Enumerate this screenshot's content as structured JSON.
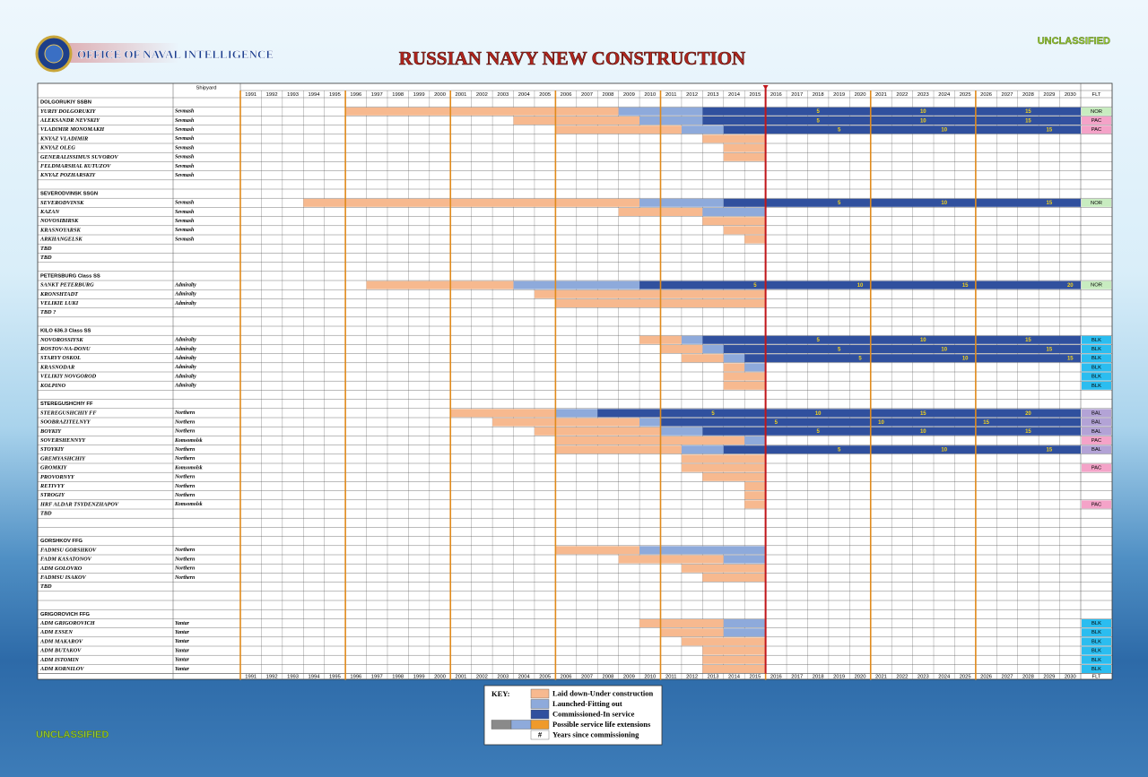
{
  "header": {
    "agency": "OFFICE OF NAVAL INTELLIGENCE",
    "title": "RUSSIAN NAVY NEW CONSTRUCTION",
    "classification": "UNCLASSIFIED"
  },
  "table": {
    "shipyard_header": "Shipyard",
    "fleet_header": "FLT",
    "current_year": 2015,
    "years": [
      1991,
      1992,
      1993,
      1994,
      1995,
      1996,
      1997,
      1998,
      1999,
      2000,
      2001,
      2002,
      2003,
      2004,
      2005,
      2006,
      2007,
      2008,
      2009,
      2010,
      2011,
      2012,
      2013,
      2014,
      2015,
      2016,
      2017,
      2018,
      2019,
      2020,
      2021,
      2022,
      2023,
      2024,
      2025,
      2026,
      2027,
      2028,
      2029,
      2030
    ],
    "colors": {
      "laid": "#f7b98f",
      "launched": "#8eaadb",
      "commissioned": "#30509e",
      "extension": "#ef9a2b",
      "gray": "#8a8a8a"
    },
    "fleet_colors": {
      "NOR": "#c8ecc0",
      "PAC": "#f4a3c8",
      "BLK": "#2bbdf0",
      "BAL": "#b3a3d6"
    },
    "sections": [
      {
        "title": "DOLGORUKIY SSBN",
        "ships": [
          {
            "name": "YURIY DOLGORUKIY",
            "yard": "Sevmash",
            "laid": 1996,
            "launched": 2009,
            "commissioned": 2013,
            "service_labels": [
              5,
              10,
              15
            ],
            "fleet": "NOR"
          },
          {
            "name": "ALEKSANDR NEVSKIY",
            "yard": "Sevmash",
            "laid": 2004,
            "launched": 2010,
            "commissioned": 2013,
            "service_labels": [
              5,
              10,
              15
            ],
            "fleet": "PAC"
          },
          {
            "name": "VLADIMIR MONOMAKH",
            "yard": "Sevmash",
            "laid": 2006,
            "launched": 2012,
            "commissioned": 2014,
            "service_labels": [
              5,
              10,
              15
            ],
            "fleet": "PAC"
          },
          {
            "name": "KNYAZ VLADIMIR",
            "yard": "Sevmash",
            "laid": 2013
          },
          {
            "name": "KNYAZ OLEG",
            "yard": "Sevmash",
            "laid": 2014
          },
          {
            "name": "GENERALISSIMUS SUVOROV",
            "yard": "Sevmash",
            "laid": 2014
          },
          {
            "name": "FELDMARSHAL KUTUZOV",
            "yard": "Sevmash"
          },
          {
            "name": "KNYAZ POZHARSKIY",
            "yard": "Sevmash"
          }
        ]
      },
      {
        "title": "SEVERODVINSK SSGN",
        "ships": [
          {
            "name": "SEVERODVINSK",
            "yard": "Sevmash",
            "laid": 1994,
            "launched": 2010,
            "commissioned": 2014,
            "service_labels": [
              5,
              10,
              15
            ],
            "fleet": "NOR"
          },
          {
            "name": "KAZAN",
            "yard": "Sevmash",
            "laid": 2009,
            "launched": 2013
          },
          {
            "name": "NOVOSIBIRSK",
            "yard": "Sevmash",
            "laid": 2013
          },
          {
            "name": "KRASNOYARSK",
            "yard": "Sevmash",
            "laid": 2014
          },
          {
            "name": "ARKHANGELSK",
            "yard": "Sevmash",
            "laid": 2015
          },
          {
            "name": "TBD"
          },
          {
            "name": "TBD"
          }
        ]
      },
      {
        "title": "PETERSBURG Class SS",
        "ships": [
          {
            "name": "SANKT PETERBURG",
            "yard": "Admiralty",
            "laid": 1997,
            "launched": 2004,
            "commissioned": 2010,
            "service_labels": [
              5,
              10,
              15,
              20
            ],
            "fleet": "NOR"
          },
          {
            "name": "KRONSHTADT",
            "yard": "Admiralty",
            "laid": 2005
          },
          {
            "name": "VELIKIE LUKI",
            "yard": "Admiralty",
            "laid": 2006
          },
          {
            "name": "TBD ?"
          }
        ]
      },
      {
        "title": "KILO 636.3 Class SS",
        "ships": [
          {
            "name": "NOVOROSSIYSK",
            "yard": "Admiralty",
            "laid": 2010,
            "launched": 2012,
            "commissioned": 2013,
            "service_labels": [
              5,
              10,
              15
            ],
            "fleet": "BLK"
          },
          {
            "name": "ROSTOV-NA-DONU",
            "yard": "Admiralty",
            "laid": 2011,
            "launched": 2013,
            "commissioned": 2014,
            "service_labels": [
              5,
              10,
              15
            ],
            "fleet": "BLK"
          },
          {
            "name": "STARYY OSKOL",
            "yard": "Admiralty",
            "laid": 2012,
            "launched": 2014,
            "commissioned": 2015,
            "service_labels": [
              5,
              10,
              15
            ],
            "fleet": "BLK"
          },
          {
            "name": "KRASNODAR",
            "yard": "Admiralty",
            "laid": 2014,
            "launched": 2015,
            "fleet": "BLK"
          },
          {
            "name": "VELIKIY NOVGOROD",
            "yard": "Admiralty",
            "laid": 2014,
            "fleet": "BLK"
          },
          {
            "name": "KOLPINO",
            "yard": "Admiralty",
            "laid": 2014,
            "fleet": "BLK"
          }
        ]
      },
      {
        "title": "STEREGUSHCHIY FF",
        "ships": [
          {
            "name": "STEREGUSHCHIY FF",
            "yard": "Northern",
            "laid": 2001,
            "launched": 2006,
            "commissioned": 2008,
            "service_labels": [
              5,
              10,
              15,
              20
            ],
            "fleet": "BAL"
          },
          {
            "name": "SOOBRAZITELNYY",
            "yard": "Northern",
            "laid": 2003,
            "launched": 2010,
            "commissioned": 2011,
            "service_labels": [
              5,
              10,
              15
            ],
            "fleet": "BAL"
          },
          {
            "name": "BOYKIY",
            "yard": "Northern",
            "laid": 2005,
            "launched": 2011,
            "commissioned": 2013,
            "service_labels": [
              5,
              10,
              15
            ],
            "fleet": "BAL"
          },
          {
            "name": "SOVERSHENNYY",
            "yard": "Komsomolsk",
            "laid": 2006,
            "launched": 2015,
            "fleet": "PAC"
          },
          {
            "name": "STOYKIY",
            "yard": "Northern",
            "laid": 2006,
            "launched": 2012,
            "commissioned": 2014,
            "service_labels": [
              5,
              10,
              15
            ],
            "fleet": "BAL"
          },
          {
            "name": "GREMYASHCHIY",
            "yard": "Northern",
            "laid": 2012
          },
          {
            "name": "GROMKIY",
            "yard": "Komsomolsk",
            "laid": 2012,
            "fleet": "PAC"
          },
          {
            "name": "PROVORNYY",
            "yard": "Northern",
            "laid": 2013
          },
          {
            "name": "RETIVYY",
            "yard": "Northern",
            "laid": 2015
          },
          {
            "name": "STROGIY",
            "yard": "Northern",
            "laid": 2015
          },
          {
            "name": "HRF ALDAR TSYDENZHAPOV",
            "yard": "Komsomolsk",
            "laid": 2015,
            "fleet": "PAC"
          },
          {
            "name": "TBD"
          }
        ]
      },
      {
        "title": "GORSHKOV FFG",
        "ships": [
          {
            "name": "FADMSU GORSHKOV",
            "yard": "Northern",
            "laid": 2006,
            "launched": 2010
          },
          {
            "name": "FADM KASATONOV",
            "yard": "Northern",
            "laid": 2009,
            "launched": 2014
          },
          {
            "name": "ADM GOLOVKO",
            "yard": "Northern",
            "laid": 2012
          },
          {
            "name": "FADMSU ISAKOV",
            "yard": "Northern",
            "laid": 2013
          },
          {
            "name": "TBD"
          }
        ]
      },
      {
        "title": "GRIGOROVICH FFG",
        "ships": [
          {
            "name": "ADM GRIGOROVICH",
            "yard": "Yantar",
            "laid": 2010,
            "launched": 2014,
            "fleet": "BLK"
          },
          {
            "name": "ADM ESSEN",
            "yard": "Yantar",
            "laid": 2011,
            "launched": 2014,
            "fleet": "BLK"
          },
          {
            "name": "ADM MAKAROV",
            "yard": "Yantar",
            "laid": 2012,
            "fleet": "BLK"
          },
          {
            "name": "ADM BUTAKOV",
            "yard": "Yantar",
            "laid": 2013,
            "fleet": "BLK"
          },
          {
            "name": "ADM ISTOMIN",
            "yard": "Yantar",
            "laid": 2013,
            "fleet": "BLK"
          },
          {
            "name": "ADM KORNILOV",
            "yard": "Yantar",
            "laid": 2013,
            "fleet": "BLK"
          }
        ]
      }
    ]
  },
  "key": {
    "title": "KEY:",
    "laid": "Laid down-Under construction",
    "launched": "Launched-Fitting out",
    "commissioned": "Commissioned-In service",
    "extension": "Possible service life extensions",
    "number_symbol": "#",
    "number": "Years since commissioning"
  }
}
